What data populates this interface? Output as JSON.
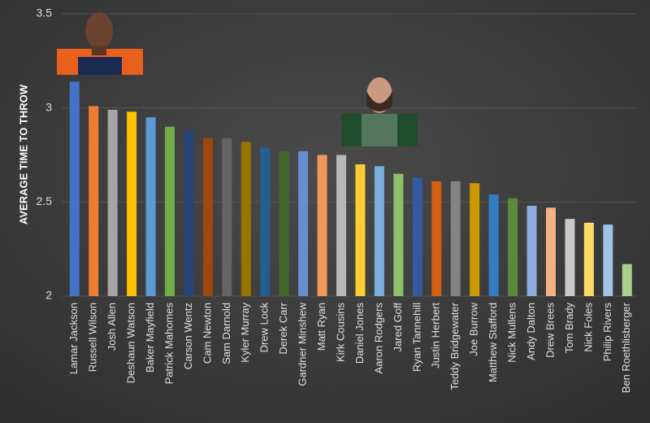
{
  "chart_data": {
    "type": "bar",
    "y_label": "AVERAGE TIME TO THROW",
    "categories": [
      "Lamar Jackson",
      "Russell Wilson",
      "Josh Allen",
      "Deshaun Watson",
      "Baker Mayfield",
      "Patrick Mahomes",
      "Carson Wentz",
      "Cam Newton",
      "Sam Darnold",
      "Kyler Murray",
      "Drew Lock",
      "Derek Carr",
      "Gardner Minshew",
      "Matt Ryan",
      "Kirk Cousins",
      "Daniel Jones",
      "Aaron Rodgers",
      "Jared Goff",
      "Ryan Tannehill",
      "Justin Herbert",
      "Teddy Bridgewater",
      "Joe Burrow",
      "Matthew Stafford",
      "Nick Mullens",
      "Andy Dalton",
      "Drew Brees",
      "Tom Brady",
      "Nick Foles",
      "Philip Rivers",
      "Ben Roethlisberger"
    ],
    "values": [
      3.14,
      3.01,
      2.99,
      2.98,
      2.95,
      2.9,
      2.88,
      2.84,
      2.84,
      2.82,
      2.79,
      2.77,
      2.77,
      2.75,
      2.75,
      2.7,
      2.69,
      2.65,
      2.63,
      2.61,
      2.61,
      2.6,
      2.54,
      2.52,
      2.48,
      2.47,
      2.41,
      2.39,
      2.38,
      2.17
    ],
    "colors": [
      "#4472c4",
      "#ed7d31",
      "#a5a5a5",
      "#ffc000",
      "#5b9bd5",
      "#70ad47",
      "#264478",
      "#9e480e",
      "#636363",
      "#997300",
      "#255e91",
      "#43682b",
      "#698ed0",
      "#f1975a",
      "#b7b7b7",
      "#ffcd33",
      "#7cafdd",
      "#8cc168",
      "#335aa1",
      "#d26012",
      "#848484",
      "#cc9a00",
      "#327dc2",
      "#5a8a39",
      "#8faadc",
      "#f4b183",
      "#c9c9c9",
      "#ffd966",
      "#9dc3e6",
      "#a9d18e"
    ],
    "ylim": [
      2,
      3.5
    ],
    "yticks": [
      2,
      2.5,
      3,
      3.5
    ],
    "grid": true
  }
}
